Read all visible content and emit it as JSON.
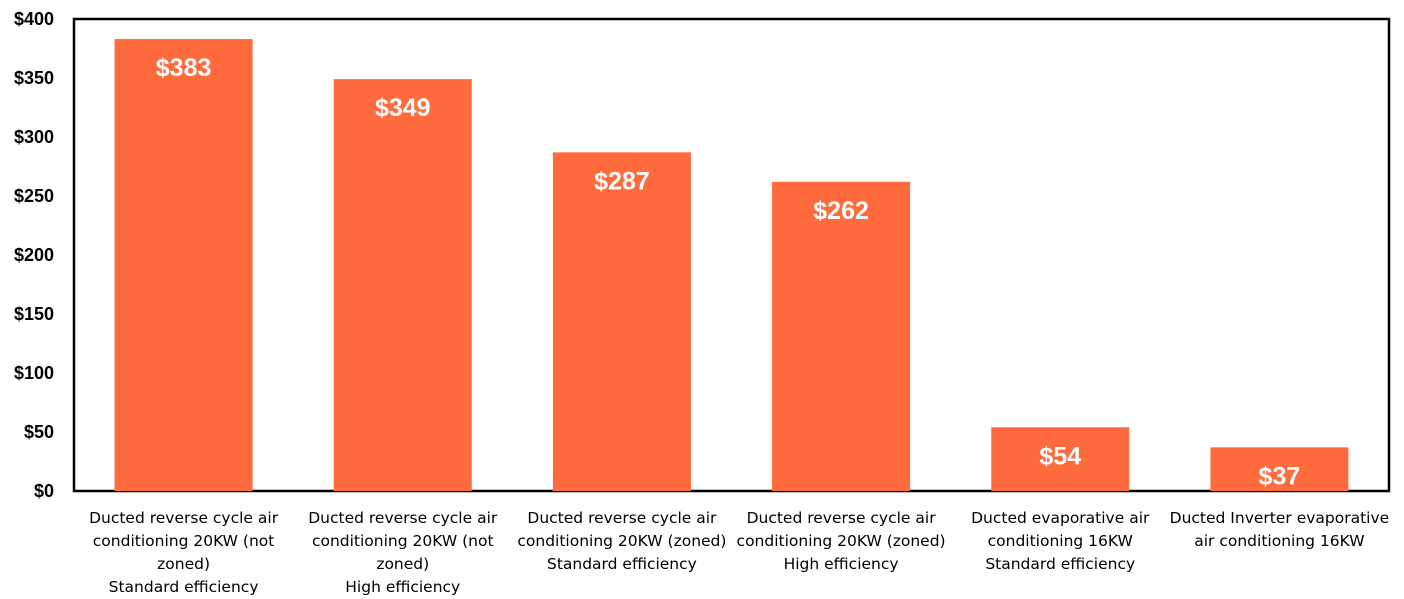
{
  "chart_data": {
    "type": "bar",
    "title": "",
    "xlabel": "",
    "ylabel": "",
    "ylim": [
      0,
      400
    ],
    "yticks": [
      0,
      50,
      100,
      150,
      200,
      250,
      300,
      350,
      400
    ],
    "ytick_labels": [
      "$0",
      "$50",
      "$100",
      "$150",
      "$200",
      "$250",
      "$300",
      "$350",
      "$400"
    ],
    "grid": false,
    "legend": "none",
    "bar_color": "#FF6B3D",
    "categories": [
      [
        "Ducted reverse cycle air",
        "conditioning 20KW (not",
        "zoned)",
        "Standard efficiency"
      ],
      [
        "Ducted reverse cycle air",
        "conditioning 20KW (not",
        "zoned)",
        "High efficiency"
      ],
      [
        "Ducted reverse cycle air",
        "conditioning 20KW (zoned)",
        "Standard efficiency"
      ],
      [
        "Ducted reverse cycle air",
        "conditioning 20KW (zoned)",
        "High efficiency"
      ],
      [
        "Ducted evaporative air",
        "conditioning 16KW",
        "Standard efficiency"
      ],
      [
        "Ducted Inverter evaporative",
        "air conditioning 16KW"
      ]
    ],
    "values": [
      383,
      349,
      287,
      262,
      54,
      37
    ],
    "data_labels": [
      "$383",
      "$349",
      "$287",
      "$262",
      "$54",
      "$37"
    ]
  }
}
